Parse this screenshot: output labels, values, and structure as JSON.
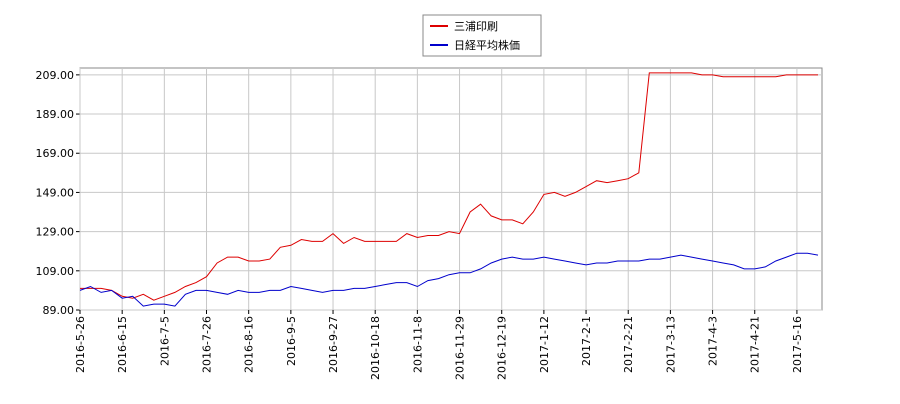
{
  "chart_data": {
    "type": "line",
    "categories": [
      "2016-5-26",
      null,
      null,
      null,
      "2016-6-15",
      null,
      null,
      null,
      "2016-7-5",
      null,
      null,
      null,
      "2016-7-26",
      null,
      null,
      null,
      "2016-8-16",
      null,
      null,
      null,
      "2016-9-5",
      null,
      null,
      null,
      "2016-9-27",
      null,
      null,
      null,
      "2016-10-18",
      null,
      null,
      null,
      "2016-11-8",
      null,
      null,
      null,
      "2016-11-29",
      null,
      null,
      null,
      "2016-12-19",
      null,
      null,
      null,
      "2017-1-12",
      null,
      null,
      null,
      "2017-2-1",
      null,
      null,
      null,
      "2017-2-21",
      null,
      null,
      null,
      "2017-3-13",
      null,
      null,
      null,
      "2017-4-3",
      null,
      null,
      null,
      "2017-4-21",
      null,
      null,
      null,
      "2017-5-16",
      null,
      null
    ],
    "series": [
      {
        "name": "三浦印刷",
        "color": "#dd0000",
        "values": [
          100,
          100,
          100,
          99,
          96,
          95,
          97,
          94,
          96,
          98,
          101,
          103,
          106,
          113,
          116,
          116,
          114,
          114,
          115,
          121,
          122,
          125,
          124,
          124,
          128,
          123,
          126,
          124,
          124,
          124,
          124,
          128,
          126,
          127,
          127,
          129,
          128,
          139,
          143,
          137,
          135,
          135,
          133,
          139,
          148,
          149,
          147,
          149,
          152,
          155,
          154,
          155,
          156,
          159,
          210,
          210,
          210,
          210,
          210,
          209,
          209,
          208,
          208,
          208,
          208,
          208,
          208,
          209,
          209,
          209,
          209
        ]
      },
      {
        "name": "日経平均株価",
        "color": "#0000cc",
        "values": [
          99,
          101,
          98,
          99,
          95,
          96,
          91,
          92,
          92,
          91,
          97,
          99,
          99,
          98,
          97,
          99,
          98,
          98,
          99,
          99,
          101,
          100,
          99,
          98,
          99,
          99,
          100,
          100,
          101,
          102,
          103,
          103,
          101,
          104,
          105,
          107,
          108,
          108,
          110,
          113,
          115,
          116,
          115,
          115,
          116,
          115,
          114,
          113,
          112,
          113,
          113,
          114,
          114,
          114,
          115,
          115,
          116,
          117,
          116,
          115,
          114,
          113,
          112,
          110,
          110,
          111,
          114,
          116,
          118,
          118,
          117
        ]
      }
    ],
    "ylim": [
      89,
      212.5
    ],
    "yticks": [
      {
        "value": 89,
        "label": "89.00"
      },
      {
        "value": 109,
        "label": "109.00"
      },
      {
        "value": 129,
        "label": "129.00"
      },
      {
        "value": 149,
        "label": "149.00"
      },
      {
        "value": 169,
        "label": "169.00"
      },
      {
        "value": 189,
        "label": "189.00"
      },
      {
        "value": 209,
        "label": "209.00"
      }
    ],
    "grid": true
  }
}
